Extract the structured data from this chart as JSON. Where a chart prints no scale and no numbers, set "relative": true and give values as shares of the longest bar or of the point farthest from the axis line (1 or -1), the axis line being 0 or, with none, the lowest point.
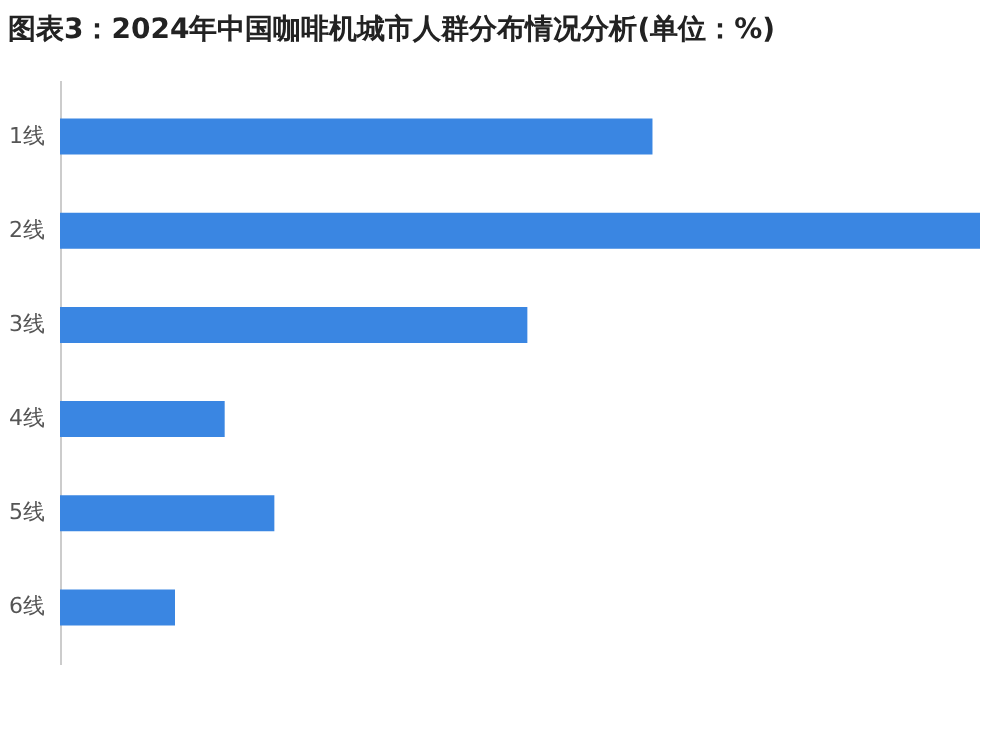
{
  "chart_data": {
    "type": "bar",
    "orientation": "horizontal",
    "relative": true,
    "title": "图表3：2024年中国咖啡机城市人群分布情况分析(单位：%)",
    "categories": [
      "1线",
      "2线",
      "3线",
      "4线",
      "5线",
      "6线"
    ],
    "values": [
      0.644,
      1,
      0.508,
      0.179,
      0.233,
      0.125
    ],
    "color": "#3a86e2"
  }
}
